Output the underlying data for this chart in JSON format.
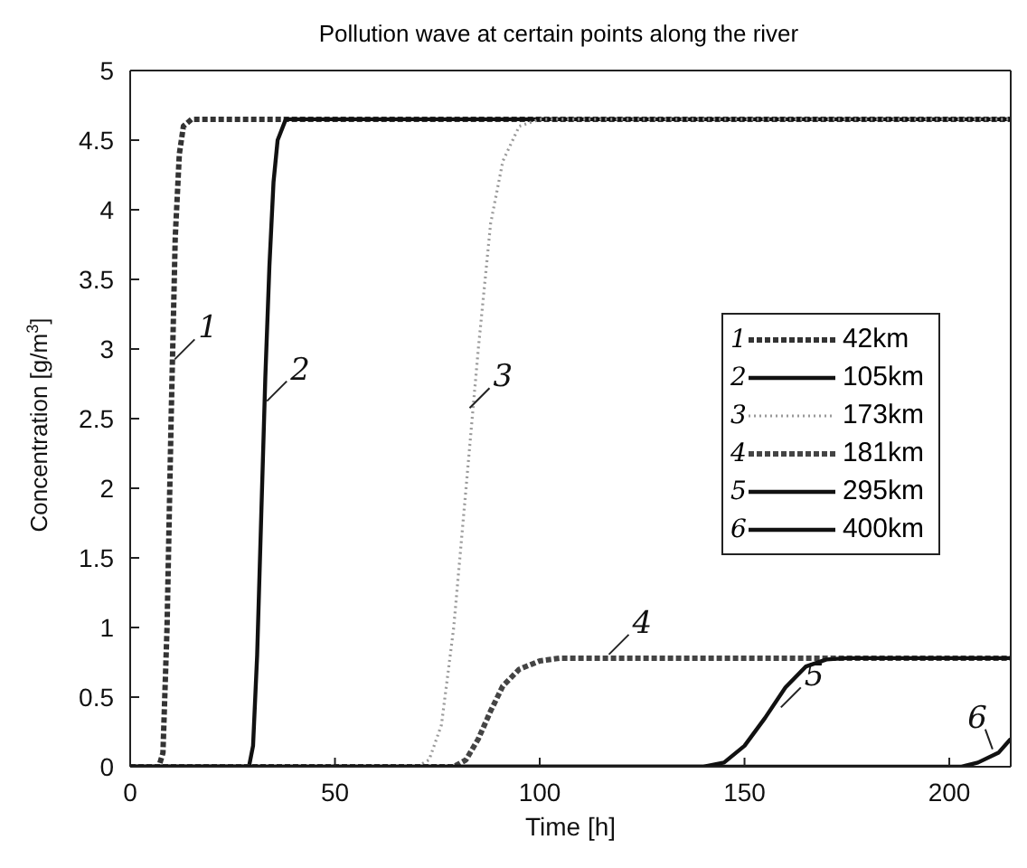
{
  "chart_data": {
    "type": "line",
    "title": "Pollution wave at certain points along the river",
    "xlabel": "Time [h]",
    "ylabel": "Concentration [g/m$^{3}$]",
    "xlim": [
      0,
      215
    ],
    "xticks": [
      0,
      50,
      100,
      150,
      200
    ],
    "ylim": [
      0,
      5
    ],
    "yticks": [
      0,
      0.5,
      1,
      1.5,
      2,
      2.5,
      3,
      3.5,
      4,
      4.5,
      5
    ],
    "grid": false,
    "legend": "right",
    "marker": "none",
    "series": [
      {
        "name": "42km",
        "color": "#333333",
        "line_style": "dashed",
        "x": [
          0,
          7,
          8,
          9,
          10,
          11,
          12,
          13,
          15,
          215
        ],
        "values": [
          0,
          0,
          0.1,
          1,
          2.5,
          3.8,
          4.4,
          4.6,
          4.65,
          4.65
        ]
      },
      {
        "name": "105km",
        "color": "#111111",
        "line_style": "solid",
        "x": [
          0,
          29,
          30,
          31,
          32,
          33,
          34,
          35,
          36,
          38,
          215
        ],
        "values": [
          0,
          0,
          0.15,
          0.8,
          1.8,
          2.8,
          3.6,
          4.2,
          4.5,
          4.65,
          4.65
        ]
      },
      {
        "name": "173km",
        "color": "#999999",
        "line_style": "dotted",
        "x": [
          0,
          70,
          73,
          76,
          79,
          82,
          85,
          88,
          91,
          95,
          100,
          215
        ],
        "values": [
          0,
          0,
          0.05,
          0.3,
          1,
          2,
          3,
          3.9,
          4.35,
          4.6,
          4.65,
          4.65
        ]
      },
      {
        "name": "181km",
        "color": "#444444",
        "line_style": "dashed",
        "x": [
          0,
          79,
          82,
          85,
          88,
          91,
          95,
          100,
          105,
          215
        ],
        "values": [
          0,
          0,
          0.05,
          0.2,
          0.4,
          0.58,
          0.7,
          0.76,
          0.78,
          0.78
        ]
      },
      {
        "name": "295km",
        "color": "#111111",
        "line_style": "solid",
        "x": [
          0,
          140,
          145,
          150,
          155,
          160,
          165,
          170,
          175,
          215
        ],
        "values": [
          0,
          0,
          0.03,
          0.15,
          0.35,
          0.57,
          0.72,
          0.77,
          0.78,
          0.78
        ]
      },
      {
        "name": "400km",
        "color": "#111111",
        "line_style": "solid",
        "x": [
          0,
          203,
          207,
          212,
          215
        ],
        "values": [
          0,
          0,
          0.03,
          0.1,
          0.2
        ]
      }
    ],
    "annotations": [
      {
        "text": "1",
        "x": 10,
        "y": 2.9
      },
      {
        "text": "2",
        "x": 32.5,
        "y": 2.6
      },
      {
        "text": "3",
        "x": 82,
        "y": 2.55
      },
      {
        "text": "4",
        "x": 116,
        "y": 0.78
      },
      {
        "text": "5",
        "x": 158,
        "y": 0.4
      },
      {
        "text": "6",
        "x": 211,
        "y": 0.1
      }
    ]
  }
}
